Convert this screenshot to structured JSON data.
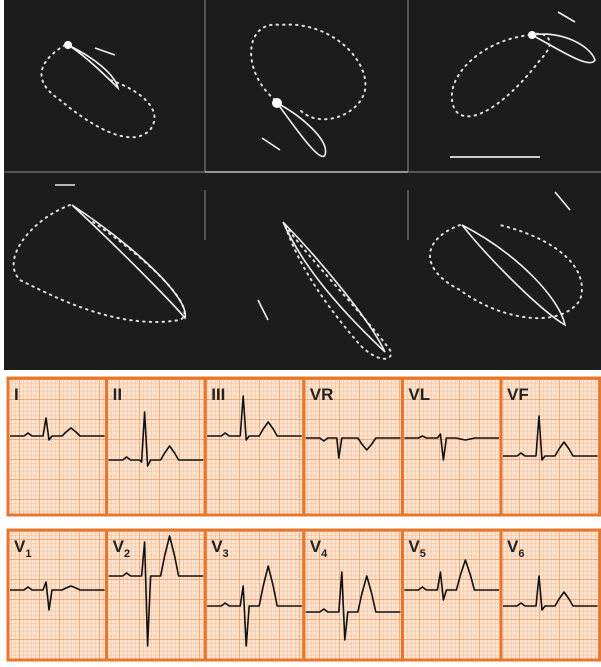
{
  "limb_leads": [
    {
      "label": "I"
    },
    {
      "label": "II"
    },
    {
      "label": "III"
    },
    {
      "label": "VR"
    },
    {
      "label": "VL"
    },
    {
      "label": "VF"
    }
  ],
  "precordial_leads": [
    {
      "label": "V",
      "subscript": "1"
    },
    {
      "label": "V",
      "subscript": "2"
    },
    {
      "label": "V",
      "subscript": "3"
    },
    {
      "label": "V",
      "subscript": "4"
    },
    {
      "label": "V",
      "subscript": "5"
    },
    {
      "label": "V",
      "subscript": "6"
    }
  ]
}
